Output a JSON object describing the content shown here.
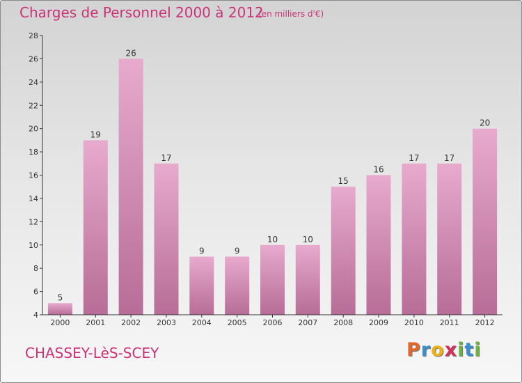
{
  "title": "Charges de Personnel 2000 à 2012",
  "subtitle": "(en milliers d'€)",
  "commune": "CHASSEY-LèS-SCEY",
  "logo": {
    "letters": [
      "P",
      "r",
      "o",
      "x",
      "i",
      "t",
      "i"
    ],
    "colors": [
      "#e0662a",
      "#3a8fd0",
      "#e9b21a",
      "#d1335a",
      "#6ab43c",
      "#3a8fd0",
      "#6ab43c"
    ]
  },
  "colors": {
    "title": "#c83378",
    "bar_light": "#e7aacd",
    "bar_dark": "#b76d97",
    "axis": "#333333"
  },
  "chart_data": {
    "type": "bar",
    "title": "Charges de Personnel 2000 à 2012",
    "subtitle": "(en milliers d'€)",
    "categories": [
      "2000",
      "2001",
      "2002",
      "2003",
      "2004",
      "2005",
      "2006",
      "2007",
      "2008",
      "2009",
      "2010",
      "2011",
      "2012"
    ],
    "values": [
      5,
      19,
      26,
      17,
      9,
      9,
      10,
      10,
      15,
      16,
      17,
      17,
      20
    ],
    "ylim": [
      4,
      28
    ],
    "yticks": [
      4,
      6,
      8,
      10,
      12,
      14,
      16,
      18,
      20,
      22,
      24,
      26,
      28
    ],
    "grid": false,
    "legend": "none"
  }
}
